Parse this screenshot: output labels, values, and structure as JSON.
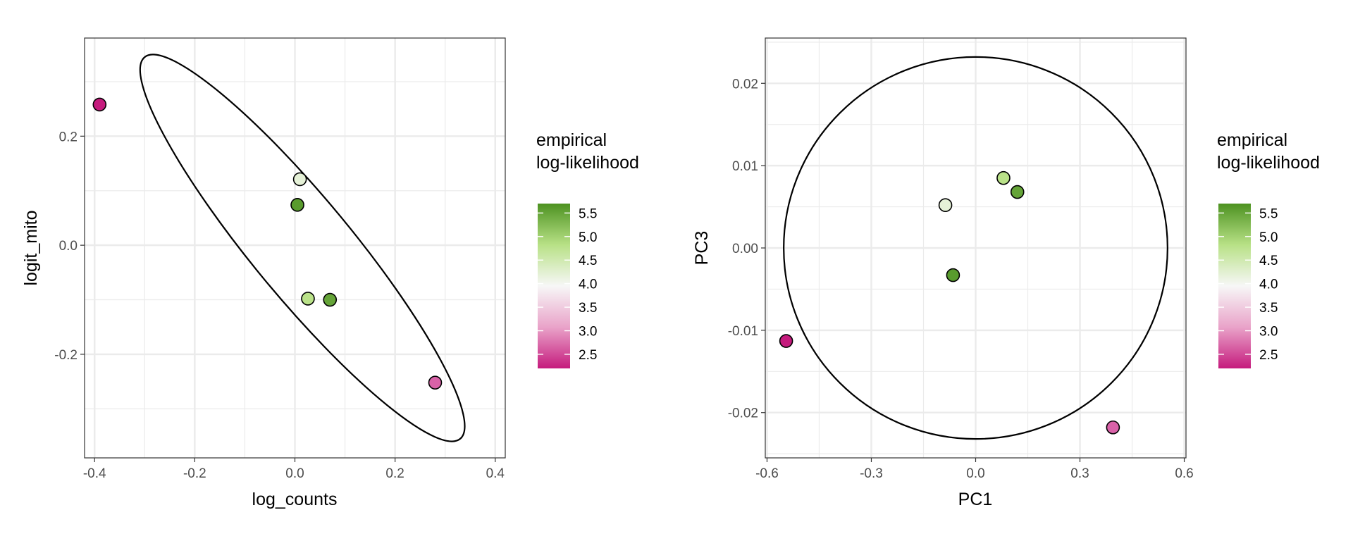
{
  "chart_data": [
    {
      "type": "scatter",
      "xlabel": "log_counts",
      "ylabel": "logit_mito",
      "xlim": [
        -0.42,
        0.42
      ],
      "ylim": [
        -0.39,
        0.38
      ],
      "x_ticks": [
        -0.4,
        -0.2,
        0.0,
        0.2,
        0.4
      ],
      "x_tick_labels": [
        "-0.4",
        "-0.2",
        "0.0",
        "0.2",
        "0.4"
      ],
      "y_ticks": [
        -0.2,
        0.0,
        0.2
      ],
      "y_tick_labels": [
        "-0.2",
        "0.0",
        "0.2"
      ],
      "grid": true,
      "points": [
        {
          "x": -0.39,
          "y": 0.258,
          "value": 2.2
        },
        {
          "x": 0.01,
          "y": 0.121,
          "value": 4.2
        },
        {
          "x": 0.005,
          "y": 0.074,
          "value": 5.6
        },
        {
          "x": 0.026,
          "y": -0.098,
          "value": 4.8
        },
        {
          "x": 0.07,
          "y": -0.1,
          "value": 5.5
        },
        {
          "x": 0.28,
          "y": -0.252,
          "value": 2.6
        }
      ],
      "ellipse": {
        "points": [
          [
            -0.3,
            0.345
          ],
          [
            -0.37,
            0.25
          ],
          [
            0.39,
            -0.31
          ],
          [
            0.33,
            -0.355
          ]
        ]
      },
      "legend": {
        "title_lines": [
          "empirical",
          "log-likelihood"
        ],
        "placement": "right",
        "ticks": [
          5.5,
          5.0,
          4.5,
          4.0,
          3.5,
          3.0,
          2.5
        ],
        "tick_labels": [
          "5.5",
          "5.0",
          "4.5",
          "4.0",
          "3.5",
          "3.0",
          "2.5"
        ],
        "range": [
          2.2,
          5.7
        ]
      }
    },
    {
      "type": "scatter",
      "xlabel": "PC1",
      "ylabel": "PC3",
      "xlim": [
        -0.605,
        0.605
      ],
      "ylim": [
        -0.0255,
        0.0255
      ],
      "x_ticks": [
        -0.6,
        -0.3,
        0.0,
        0.3,
        0.6
      ],
      "x_tick_labels": [
        "-0.6",
        "-0.3",
        "0.0",
        "0.3",
        "0.6"
      ],
      "y_ticks": [
        -0.02,
        -0.01,
        0.0,
        0.01,
        0.02
      ],
      "y_tick_labels": [
        "-0.02",
        "-0.01",
        "0.00",
        "0.01",
        "0.02"
      ],
      "grid": true,
      "points": [
        {
          "x": -0.087,
          "y": 0.0052,
          "value": 4.2
        },
        {
          "x": 0.08,
          "y": 0.0085,
          "value": 4.8
        },
        {
          "x": 0.12,
          "y": 0.0068,
          "value": 5.5
        },
        {
          "x": -0.065,
          "y": -0.0033,
          "value": 5.6
        },
        {
          "x": -0.545,
          "y": -0.0113,
          "value": 2.2
        },
        {
          "x": 0.395,
          "y": -0.0218,
          "value": 2.6
        }
      ],
      "ellipse": {
        "center": [
          0.0,
          0.0
        ],
        "rx": 0.552,
        "ry": 0.0232
      },
      "legend": {
        "title_lines": [
          "empirical",
          "log-likelihood"
        ],
        "placement": "right",
        "ticks": [
          5.5,
          5.0,
          4.5,
          4.0,
          3.5,
          3.0,
          2.5
        ],
        "tick_labels": [
          "5.5",
          "5.0",
          "4.5",
          "4.0",
          "3.5",
          "3.0",
          "2.5"
        ],
        "range": [
          2.2,
          5.7
        ]
      }
    }
  ],
  "colors": {
    "low": "#c51b7d",
    "mid_low": "#f1b6da",
    "mid": "#f7f7f7",
    "mid_high": "#b8e186",
    "high": "#4d9221",
    "grid": "#ebebeb",
    "panel_border": "#333333",
    "ellipse": "#000000"
  }
}
